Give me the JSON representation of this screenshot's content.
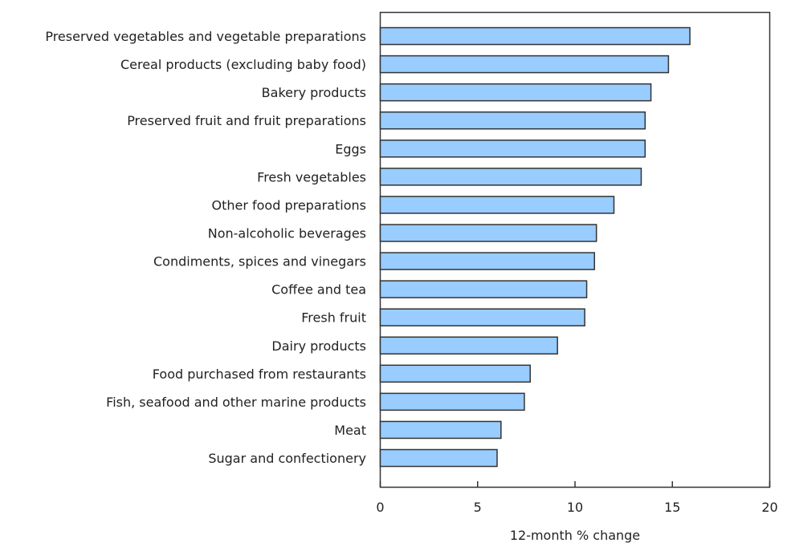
{
  "chart_data": {
    "type": "bar",
    "orientation": "horizontal",
    "title": "",
    "xlabel": "12-month % change",
    "ylabel": "",
    "xlim": [
      0,
      20
    ],
    "xticks": [
      0,
      5,
      10,
      15,
      20
    ],
    "grid": false,
    "bar_color": "#99ccff",
    "bar_edge_color": "#333333",
    "categories": [
      "Preserved vegetables and vegetable preparations",
      "Cereal products (excluding baby food)",
      "Bakery products",
      "Preserved fruit and fruit preparations",
      "Eggs",
      "Fresh vegetables",
      "Other food preparations",
      "Non-alcoholic beverages",
      "Condiments, spices and vinegars",
      "Coffee and tea",
      "Fresh fruit",
      "Dairy products",
      "Food purchased from restaurants",
      "Fish, seafood and other marine products",
      "Meat",
      "Sugar and confectionery"
    ],
    "values": [
      15.9,
      14.8,
      13.9,
      13.6,
      13.6,
      13.4,
      12.0,
      11.1,
      11.0,
      10.6,
      10.5,
      9.1,
      7.7,
      7.4,
      6.2,
      6.0
    ]
  }
}
